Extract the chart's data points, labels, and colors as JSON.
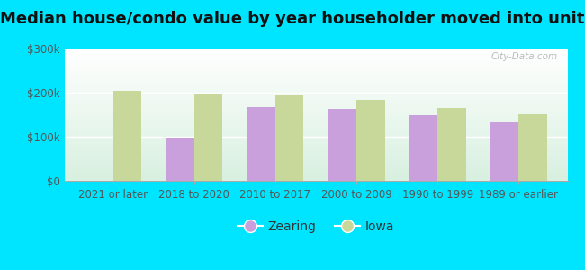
{
  "title": "Median house/condo value by year householder moved into unit",
  "categories": [
    "2021 or later",
    "2018 to 2020",
    "2010 to 2017",
    "2000 to 2009",
    "1990 to 1999",
    "1989 or earlier"
  ],
  "zearing_values": [
    null,
    97000,
    168000,
    163000,
    148000,
    133000
  ],
  "iowa_values": [
    205000,
    195000,
    193000,
    183000,
    165000,
    152000
  ],
  "zearing_color": "#c9a0dc",
  "iowa_color": "#c8d89a",
  "outer_bg": "#00e5ff",
  "plot_bg_top": "#f0faf5",
  "plot_bg_bottom": "#d8f0e0",
  "ylim": [
    0,
    300000
  ],
  "yticks": [
    0,
    100000,
    200000,
    300000
  ],
  "ytick_labels": [
    "$0",
    "$100k",
    "$200k",
    "$300k"
  ],
  "bar_width": 0.35,
  "legend_labels": [
    "Zearing",
    "Iowa"
  ],
  "watermark": "City-Data.com",
  "title_fontsize": 13,
  "tick_fontsize": 8.5,
  "legend_fontsize": 10
}
